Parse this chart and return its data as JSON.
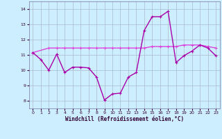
{
  "xlabel": "Windchill (Refroidissement éolien,°C)",
  "background_color": "#cceeff",
  "grid_color": "#aabbcc",
  "line1_color": "#aa00aa",
  "line2_color": "#dd44dd",
  "xlim": [
    -0.5,
    23.5
  ],
  "ylim": [
    7.5,
    14.5
  ],
  "yticks": [
    8,
    9,
    10,
    11,
    12,
    13,
    14
  ],
  "xticks": [
    0,
    1,
    2,
    3,
    4,
    5,
    6,
    7,
    8,
    9,
    10,
    11,
    12,
    13,
    14,
    15,
    16,
    17,
    18,
    19,
    20,
    21,
    22,
    23
  ],
  "series1_x": [
    0,
    1,
    2,
    3,
    4,
    5,
    6,
    7,
    8,
    9,
    10,
    11,
    12,
    13,
    14,
    15,
    16,
    17,
    18,
    19,
    20,
    21,
    22,
    23
  ],
  "series1_y": [
    11.15,
    10.7,
    10.0,
    11.05,
    9.85,
    10.2,
    10.2,
    10.15,
    9.55,
    8.05,
    8.45,
    8.5,
    9.55,
    9.85,
    12.6,
    13.5,
    13.5,
    13.85,
    10.5,
    10.95,
    11.25,
    11.65,
    11.45,
    10.95
  ],
  "series2_x": [
    0,
    2,
    3,
    4,
    5,
    6,
    7,
    8,
    9,
    10,
    11,
    12,
    13,
    14,
    15,
    16,
    17,
    18,
    19,
    20,
    21,
    22,
    23
  ],
  "series2_y": [
    11.15,
    11.45,
    11.45,
    11.45,
    11.45,
    11.45,
    11.45,
    11.45,
    11.45,
    11.45,
    11.45,
    11.45,
    11.45,
    11.45,
    11.55,
    11.55,
    11.55,
    11.55,
    11.65,
    11.65,
    11.65,
    11.55,
    11.45
  ]
}
